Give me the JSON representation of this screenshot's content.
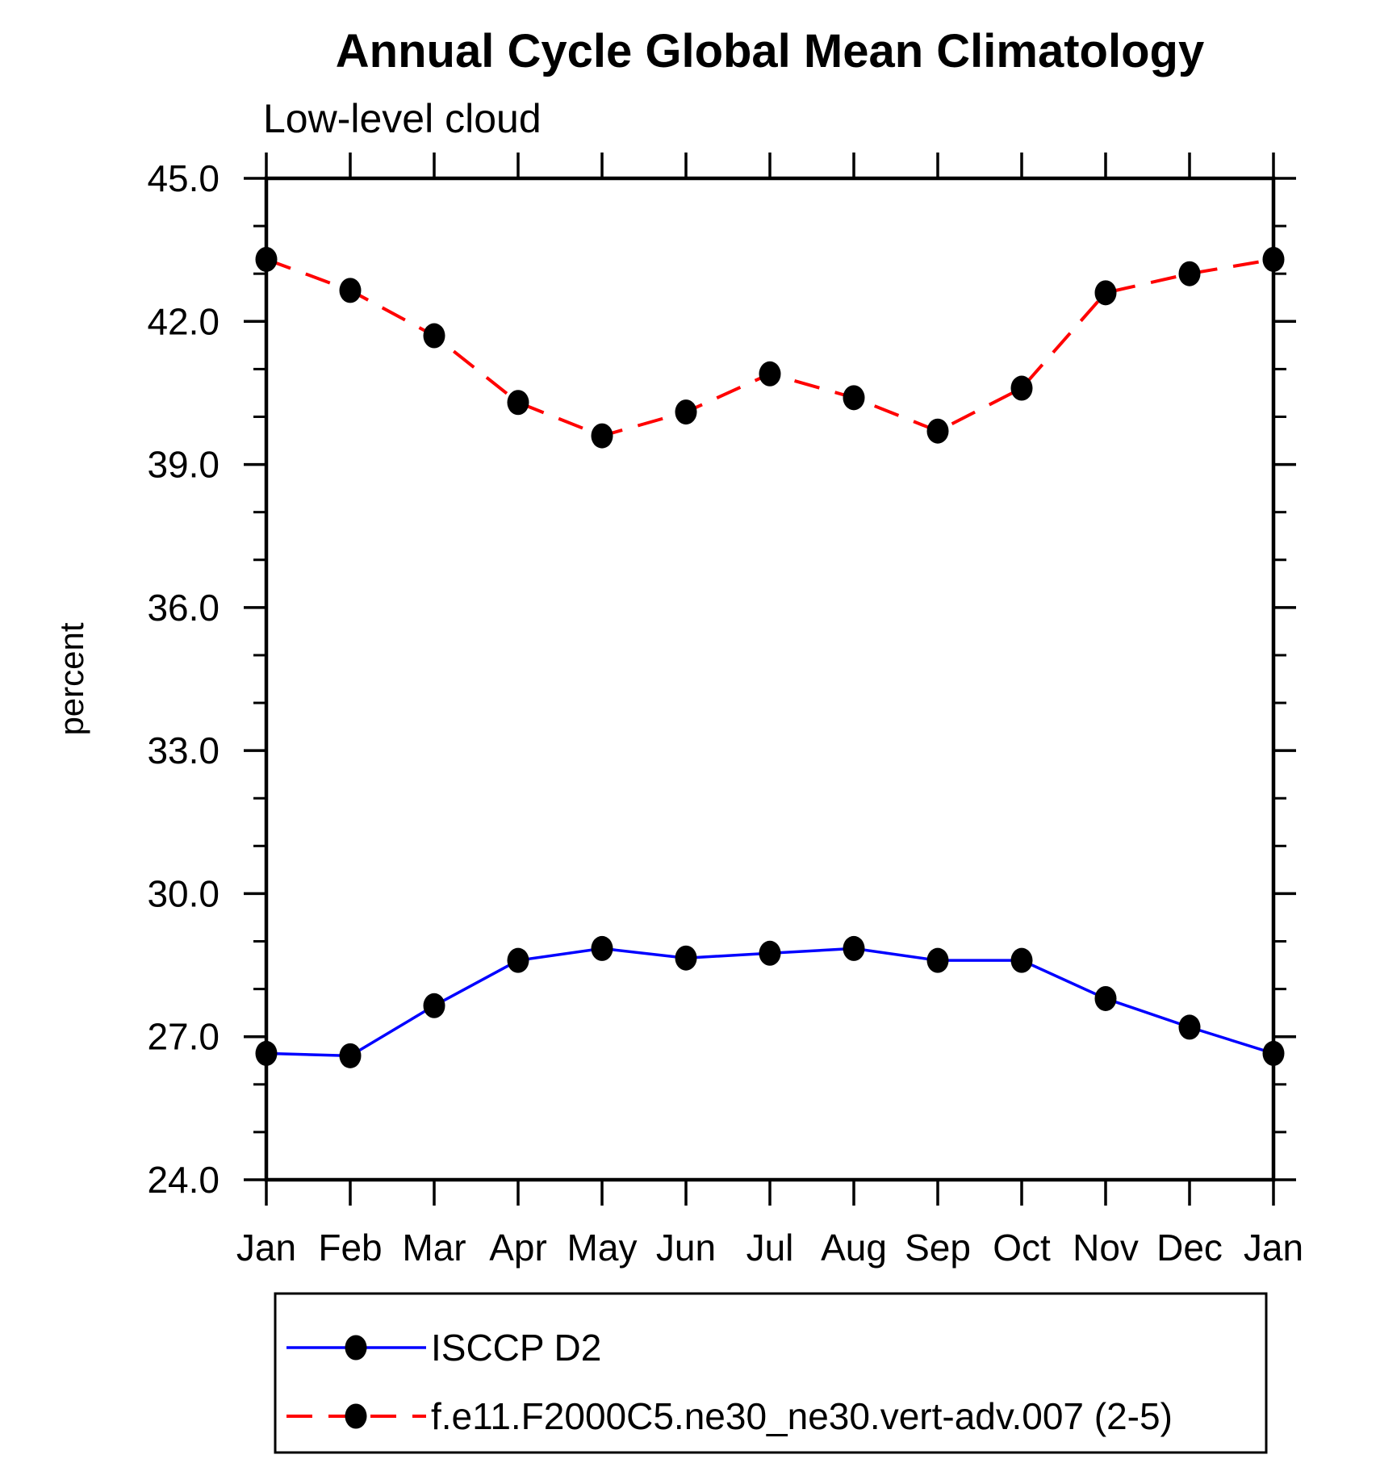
{
  "title": "Annual Cycle Global Mean Climatology",
  "subtitle": "Low-level cloud",
  "chart_data": {
    "type": "line",
    "title": "Annual Cycle Global Mean Climatology",
    "subtitle": "Low-level cloud",
    "xlabel": "",
    "ylabel": "percent",
    "categories": [
      "Jan",
      "Feb",
      "Mar",
      "Apr",
      "May",
      "Jun",
      "Jul",
      "Aug",
      "Sep",
      "Oct",
      "Nov",
      "Dec",
      "Jan"
    ],
    "ylim": [
      24.0,
      45.0
    ],
    "ytick_labels": [
      "45.0",
      "42.0",
      "39.0",
      "36.0",
      "33.0",
      "30.0",
      "27.0",
      "24.0"
    ],
    "yticks_major": [
      45.0,
      42.0,
      39.0,
      36.0,
      33.0,
      30.0,
      27.0,
      24.0
    ],
    "ytick_minor_interval": 1.0,
    "grid": false,
    "legend_position": "bottom",
    "colors": {
      "obs_line": "#0000ff",
      "model_line": "#ff0000",
      "marker": "#000000",
      "axis": "#000000",
      "background": "#ffffff"
    },
    "series": [
      {
        "name": "ISCCP D2",
        "color": "#0000ff",
        "line_style": "solid",
        "marker": "filled-circle",
        "marker_color": "#000000",
        "values": [
          26.65,
          26.6,
          27.65,
          28.6,
          28.85,
          28.65,
          28.75,
          28.85,
          28.6,
          28.6,
          27.8,
          27.2,
          26.65
        ]
      },
      {
        "name": "f.e11.F2000C5.ne30_ne30.vert-adv.007 (2-5)",
        "color": "#ff0000",
        "line_style": "dashed",
        "marker": "filled-circle",
        "marker_color": "#000000",
        "values": [
          43.3,
          42.65,
          41.7,
          40.3,
          39.6,
          40.1,
          40.9,
          40.4,
          39.7,
          40.6,
          42.6,
          43.0,
          43.3
        ]
      }
    ]
  }
}
